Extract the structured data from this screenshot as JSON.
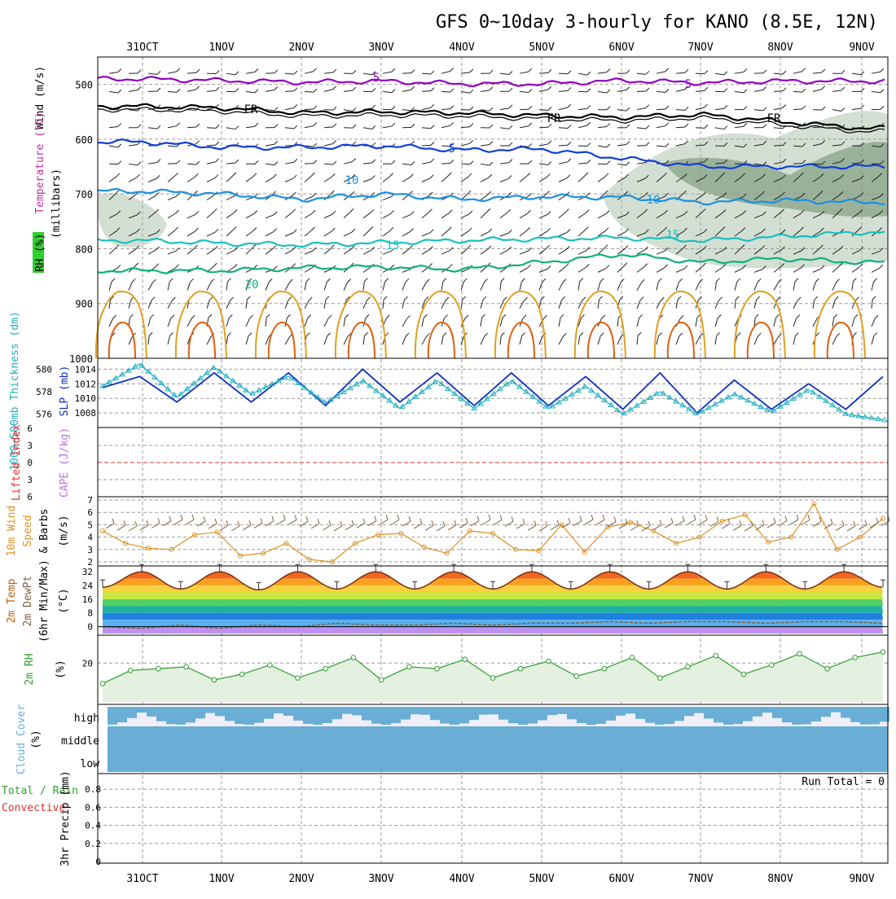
{
  "title": "GFS 0~10day 3-hourly for KANO (8.5E, 12N)",
  "dates": [
    "31OCT",
    "1NOV",
    "2NOV",
    "3NOV",
    "4NOV",
    "5NOV",
    "6NOV",
    "7NOV",
    "8NOV",
    "9NOV"
  ],
  "colors": {
    "frame": "#000000",
    "grid": "#9a9a9a",
    "purple": "#9000c0",
    "black": "#000000",
    "blue": "#1040d8",
    "lightblue": "#1a90e0",
    "teal": "#18c0c0",
    "green": "#10b080",
    "orange": "#e0a020",
    "darkorange": "#e06010",
    "rh_cloud": "#9eb89e",
    "slp": "#1030c0",
    "thickness": "#20b0c0",
    "lifted": "#e03030",
    "cape": "#c070e0",
    "wind10": "#e09020",
    "barb10": "#806040",
    "dewpt": "#806040",
    "rh2m": "#30a030",
    "cloud": "#6aaed6",
    "cloud_bg": "#f0eef8",
    "precip_total": "#30a030",
    "precip_conv": "#e03030"
  },
  "panels": {
    "upper": {
      "ylabel_wind": "Wind (m/s)",
      "ylabel_temp": "Temperature (°C)",
      "ylabel_rh": "RH (%)",
      "ylabel_mb": "(millibars)",
      "ticks": [
        "500",
        "600",
        "700",
        "800",
        "900",
        "1000"
      ]
    },
    "slp": {
      "ylabel_thick": "1000~500mb Thickness (dm)",
      "ylabel_slp": "SLP (mb)",
      "thick_ticks": [
        "580",
        "578",
        "576"
      ],
      "slp_ticks": [
        "1014",
        "1012",
        "1010",
        "1008"
      ]
    },
    "lifted": {
      "ylabel_li": "Lifted Index",
      "ylabel_cape": "CAPE (J/kg)",
      "ticks": [
        "6",
        "3",
        "0",
        "3",
        "6"
      ]
    },
    "wind10": {
      "ylabel_a": "10m Wind",
      "ylabel_b": "Speed",
      "ylabel_c": "& Barbs",
      "unit": "(m/s)",
      "ticks": [
        "7",
        "6",
        "5",
        "4",
        "3",
        "2"
      ]
    },
    "temp2m": {
      "ylabel_a": "2m Temp",
      "ylabel_b": "2m DewPt",
      "ylabel_c": "(6hr Min/Max)",
      "unit": "(°C)",
      "ticks": [
        "32",
        "24",
        "16",
        "8",
        "0"
      ]
    },
    "rh2m": {
      "ylabel": "2m RH",
      "unit": "(%)",
      "ticks": [
        "20"
      ]
    },
    "cloud": {
      "ylabel": "Cloud Cover",
      "unit": "(%)",
      "levels": [
        "high",
        "middle",
        "low"
      ]
    },
    "precip": {
      "ylabel_a": "Total / Rain",
      "ylabel_b": "Convective",
      "ylabel_c": "3hr Precip (mm)",
      "run_total": "Run Total = 0",
      "ticks": [
        "0.8",
        "0.6",
        "0.4",
        "0.2",
        "0"
      ]
    }
  },
  "contour_labels": {
    "purple": [
      "5",
      "5"
    ],
    "freezing": [
      "FR",
      "FR",
      "FR"
    ],
    "blue": [
      "5"
    ],
    "lightblue": [
      "10",
      "10"
    ],
    "teal": [
      "15",
      "15"
    ],
    "green": [
      "20"
    ]
  },
  "chart_data": [
    {
      "type": "line",
      "name": "upper-air cross-section",
      "ylabel": "millibars",
      "ylim": [
        1000,
        450
      ],
      "x": [
        "31OCT",
        "1NOV",
        "2NOV",
        "3NOV",
        "4NOV",
        "5NOV",
        "6NOV",
        "7NOV",
        "8NOV",
        "9NOV"
      ],
      "series": [
        {
          "name": "-5",
          "values": [
            490,
            493,
            496,
            494,
            499,
            499,
            493,
            497,
            494,
            494
          ]
        },
        {
          "name": "FR",
          "values": [
            540,
            543,
            552,
            550,
            552,
            557,
            560,
            555,
            568,
            580
          ]
        },
        {
          "name": "5",
          "values": [
            605,
            615,
            615,
            612,
            620,
            618,
            635,
            650,
            650,
            650
          ]
        },
        {
          "name": "10",
          "values": [
            695,
            700,
            710,
            700,
            710,
            705,
            706,
            715,
            712,
            715
          ]
        },
        {
          "name": "15",
          "values": [
            785,
            790,
            793,
            789,
            785,
            782,
            780,
            785,
            778,
            770
          ]
        },
        {
          "name": "20",
          "values": [
            840,
            840,
            835,
            833,
            838,
            825,
            810,
            825,
            818,
            825
          ]
        }
      ]
    },
    {
      "type": "line",
      "name": "SLP and thickness",
      "series": [
        {
          "name": "SLP (mb)",
          "values": [
            1011.5,
            1013.0,
            1009.5,
            1013.5,
            1009.5,
            1013.5,
            1009.0,
            1014.0,
            1009.5,
            1013.5,
            1009.0,
            1013.5,
            1009.0,
            1013.0,
            1008.5,
            1013.5,
            1008.0,
            1012.5,
            1008.5,
            1012.0,
            1008.5,
            1013.0
          ]
        },
        {
          "name": "Thickness (dm)",
          "values": [
            578.5,
            580.5,
            577.5,
            580.2,
            577.8,
            579.4,
            577.0,
            579.0,
            576.5,
            579.0,
            576.5,
            579.0,
            576.5,
            578.5,
            576.0,
            578.0,
            576.0,
            577.8,
            576.2,
            578.2,
            576.0,
            575.5
          ]
        }
      ]
    },
    {
      "type": "line",
      "name": "Lifted Index / CAPE",
      "ylim": [
        6,
        -6
      ],
      "series": [
        {
          "name": "Lifted Index",
          "values": [
            0
          ]
        }
      ]
    },
    {
      "type": "line",
      "name": "10m wind speed",
      "ylabel": "m/s",
      "ylim": [
        2,
        7
      ],
      "values": [
        4.5,
        3.5,
        3.1,
        3.0,
        4.2,
        4.4,
        2.5,
        2.7,
        3.5,
        2.2,
        2.0,
        3.5,
        4.2,
        4.3,
        3.2,
        2.7,
        4.5,
        4.3,
        3.0,
        2.9,
        5.0,
        2.8,
        4.8,
        5.2,
        4.5,
        3.5,
        4.0,
        5.3,
        5.8,
        3.6,
        4.0,
        6.7,
        3.0,
        4.0,
        5.5
      ]
    },
    {
      "type": "area",
      "name": "2m temperature",
      "ylabel": "°C",
      "ylim": [
        -4,
        34
      ],
      "series": [
        {
          "name": "2m Temp",
          "values": [
            23,
            32,
            22,
            32,
            21.5,
            32,
            22,
            32,
            22,
            32,
            22,
            32,
            22,
            32,
            22,
            32,
            22,
            32,
            22,
            32,
            23
          ]
        },
        {
          "name": "2m DewPt",
          "values": [
            0,
            -1,
            1,
            -1,
            1,
            0,
            2,
            1,
            1,
            2,
            1,
            2,
            2,
            3,
            2,
            3,
            3,
            2,
            3,
            3,
            2
          ]
        }
      ]
    },
    {
      "type": "area",
      "name": "2m RH",
      "ylabel": "%",
      "ylim": [
        0,
        35
      ],
      "values": [
        9,
        16,
        17,
        18,
        11,
        14,
        19,
        12,
        17,
        23,
        11,
        18,
        17,
        22,
        12,
        17,
        21,
        13,
        17,
        23,
        12,
        18,
        24,
        14,
        19,
        25,
        17,
        23,
        26
      ]
    },
    {
      "type": "bar",
      "name": "cloud cover",
      "categories": [
        "high",
        "middle",
        "low"
      ],
      "values": [
        60,
        100,
        100
      ]
    },
    {
      "type": "bar",
      "name": "3hr precip",
      "ylabel": "mm",
      "ylim": [
        0,
        0.9
      ],
      "values": [
        0
      ]
    }
  ]
}
